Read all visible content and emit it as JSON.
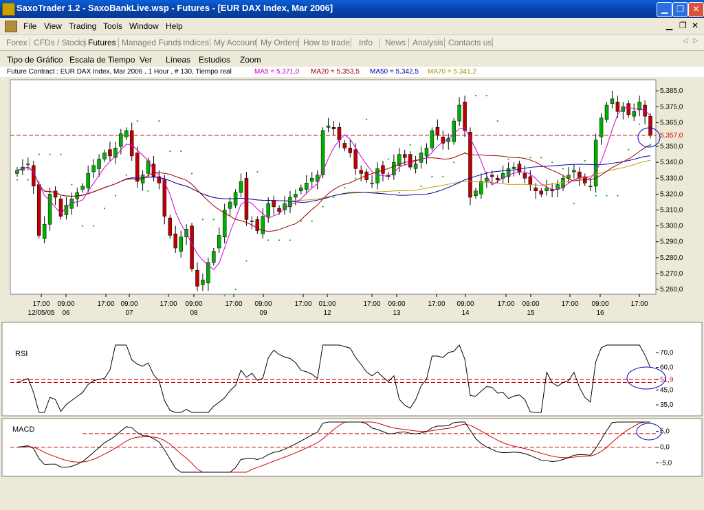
{
  "window": {
    "title": "SaxoTrader 1.2 - SaxoBankLive.wsp - Futures - [EUR DAX Index, Mar 2006]"
  },
  "menu": [
    "File",
    "View",
    "Trading",
    "Tools",
    "Window",
    "Help"
  ],
  "tabs": [
    "Forex",
    "CFDs / Stocks",
    "Futures",
    "Managed Funds",
    "Indices",
    "My Account",
    "My Orders",
    "How to trade",
    "Info",
    "News",
    "Analysis",
    "Contacts us"
  ],
  "active_tab": "Futures",
  "chart_menu": [
    "Tipo de Gráfico",
    "Escala de Tiempo",
    "Ver",
    "Líneas",
    "Estudios",
    "Zoom"
  ],
  "info": {
    "contract": "Future Contract : EUR DAX Index, Mar 2006 , 1 Hour , # 130, Tiempo real",
    "ma5": "MA5 = 5.371,0",
    "ma20": "MA20 = 5.353,5",
    "ma50": "MA50 = 5.342,5",
    "ma70": "MA70 = 5.341,2"
  },
  "colors": {
    "up": "#00b000",
    "down": "#c00000",
    "ma5": "#d000d0",
    "ma20": "#a00000",
    "ma50": "#0000b0",
    "ma70": "#c0a000",
    "psar": "#00b000",
    "level": "#d00000"
  },
  "chart_data": [
    {
      "type": "candlestick",
      "title": "EUR DAX Index, Mar 2006",
      "y_ticks": [
        "5.385,0",
        "5.375,0",
        "5.365,0",
        "5.350,0",
        "5.340,0",
        "5.330,0",
        "5.320,0",
        "5.310,0",
        "5.300,0",
        "5.290,0",
        "5.280,0",
        "5.270,0",
        "5.260,0"
      ],
      "ylim": [
        5257,
        5392
      ],
      "last_price_label": "5.357,0",
      "x_ticks_time": [
        "17:00",
        "09:00",
        "17:00",
        "09:00",
        "17:00",
        "09:00",
        "17:00",
        "09:00",
        "17:00",
        "01:00",
        "17:00",
        "09:00",
        "17:00",
        "09:00",
        "17:00",
        "09:00",
        "17:00",
        "09:00",
        "17:00"
      ],
      "x_ticks_date": [
        "12/05/05",
        "06",
        "07",
        "08",
        "09",
        "12",
        "13",
        "14",
        "15",
        "16"
      ],
      "close": [
        5335,
        5337,
        5339,
        5325,
        5294,
        5301,
        5320,
        5318,
        5306,
        5313,
        5317,
        5321,
        5325,
        5333,
        5338,
        5342,
        5346,
        5344,
        5349,
        5358,
        5360,
        5344,
        5328,
        5332,
        5341,
        5331,
        5327,
        5306,
        5294,
        5286,
        5293,
        5298,
        5273,
        5262,
        5266,
        5277,
        5284,
        5294,
        5310,
        5315,
        5321,
        5328,
        5304,
        5303,
        5297,
        5306,
        5314,
        5312,
        5309,
        5314,
        5318,
        5320,
        5324,
        5327,
        5330,
        5332,
        5360,
        5363,
        5361,
        5354,
        5349,
        5346,
        5336,
        5333,
        5329,
        5327,
        5336,
        5333,
        5331,
        5340,
        5345,
        5343,
        5337,
        5339,
        5346,
        5349,
        5360,
        5357,
        5352,
        5355,
        5366,
        5376,
        5360,
        5318,
        5322,
        5328,
        5330,
        5331,
        5329,
        5333,
        5336,
        5337,
        5334,
        5330,
        5326,
        5322,
        5320,
        5324,
        5322,
        5326,
        5330,
        5332,
        5335,
        5330,
        5327,
        5325,
        5354,
        5368,
        5376,
        5380,
        5372,
        5375,
        5370,
        5372,
        5378,
        5369,
        5357
      ],
      "rsi_ticks": [
        "70,0",
        "60,0",
        "51,9",
        "45,0",
        "35,0"
      ],
      "macd_ticks": [
        "5,0",
        "0,0",
        "-5,0"
      ]
    }
  ]
}
